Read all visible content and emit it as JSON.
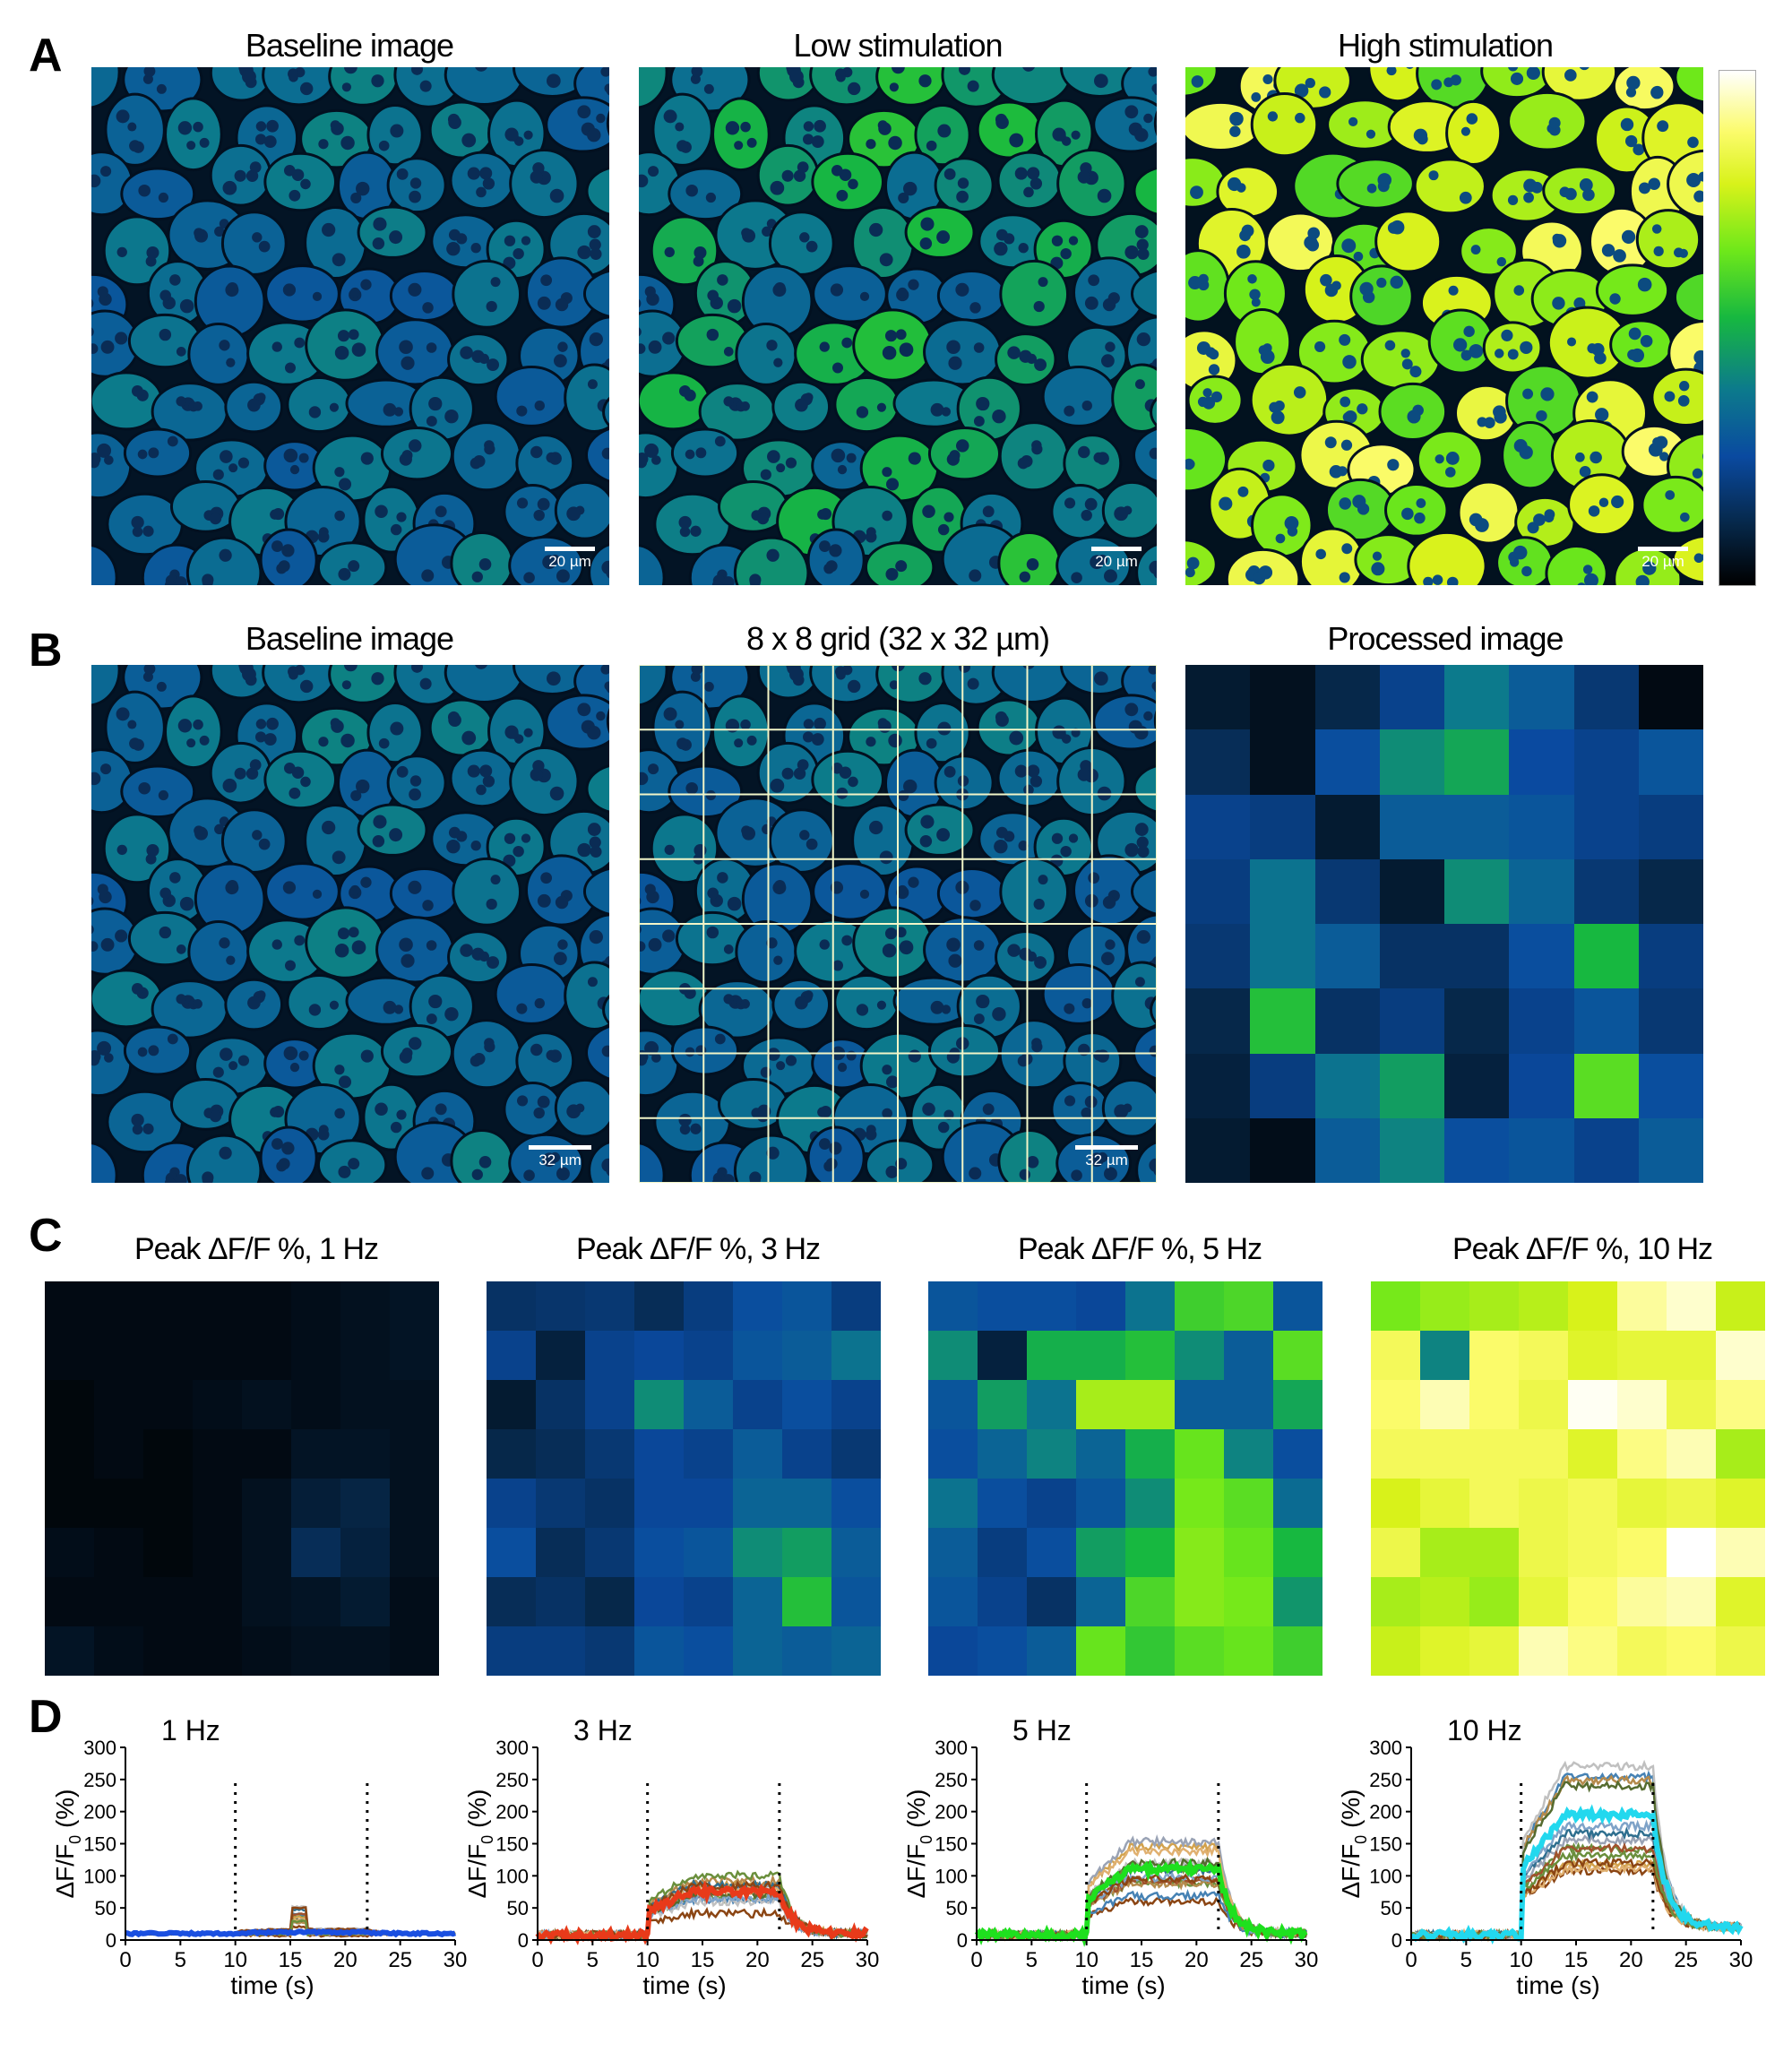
{
  "panels": {
    "A": {
      "letter": "A",
      "titles": [
        "Baseline image",
        "Low stimulation",
        "High stimulation"
      ],
      "scale_label": "20 µm"
    },
    "B": {
      "letter": "B",
      "titles": [
        "Baseline image",
        "8 x 8 grid (32 x 32 µm)",
        "Processed image"
      ],
      "scale_label": "32 µm",
      "processed_grid": [
        [
          0.08,
          0.05,
          0.12,
          0.22,
          0.38,
          0.3,
          0.18,
          0.03
        ],
        [
          0.14,
          0.05,
          0.26,
          0.42,
          0.48,
          0.25,
          0.22,
          0.28
        ],
        [
          0.22,
          0.2,
          0.08,
          0.3,
          0.3,
          0.28,
          0.22,
          0.2
        ],
        [
          0.2,
          0.36,
          0.18,
          0.08,
          0.42,
          0.32,
          0.18,
          0.12
        ],
        [
          0.18,
          0.36,
          0.3,
          0.16,
          0.16,
          0.26,
          0.52,
          0.2
        ],
        [
          0.12,
          0.54,
          0.16,
          0.2,
          0.12,
          0.22,
          0.28,
          0.18
        ],
        [
          0.1,
          0.2,
          0.36,
          0.46,
          0.1,
          0.24,
          0.62,
          0.26
        ],
        [
          0.08,
          0.04,
          0.3,
          0.4,
          0.26,
          0.28,
          0.22,
          0.3
        ]
      ]
    },
    "C": {
      "letter": "C",
      "titles": [
        "Peak ΔF/F %, 1 Hz",
        "Peak ΔF/F %, 3 Hz",
        "Peak ΔF/F %, 5 Hz",
        "Peak ΔF/F %, 10 Hz"
      ],
      "grids": [
        [
          [
            0.03,
            0.03,
            0.03,
            0.03,
            0.03,
            0.04,
            0.05,
            0.06
          ],
          [
            0.03,
            0.03,
            0.03,
            0.03,
            0.03,
            0.04,
            0.05,
            0.06
          ],
          [
            0.02,
            0.03,
            0.03,
            0.04,
            0.05,
            0.04,
            0.05,
            0.05
          ],
          [
            0.02,
            0.03,
            0.02,
            0.03,
            0.03,
            0.06,
            0.06,
            0.05
          ],
          [
            0.02,
            0.02,
            0.02,
            0.03,
            0.05,
            0.09,
            0.11,
            0.05
          ],
          [
            0.04,
            0.03,
            0.02,
            0.03,
            0.05,
            0.14,
            0.1,
            0.05
          ],
          [
            0.03,
            0.03,
            0.03,
            0.03,
            0.05,
            0.06,
            0.08,
            0.04
          ],
          [
            0.06,
            0.04,
            0.03,
            0.03,
            0.04,
            0.05,
            0.05,
            0.04
          ]
        ],
        [
          [
            0.16,
            0.17,
            0.18,
            0.14,
            0.2,
            0.26,
            0.28,
            0.2
          ],
          [
            0.22,
            0.1,
            0.22,
            0.24,
            0.22,
            0.28,
            0.3,
            0.36
          ],
          [
            0.08,
            0.16,
            0.22,
            0.42,
            0.3,
            0.22,
            0.26,
            0.22
          ],
          [
            0.12,
            0.14,
            0.18,
            0.24,
            0.22,
            0.3,
            0.22,
            0.18
          ],
          [
            0.22,
            0.18,
            0.16,
            0.24,
            0.24,
            0.32,
            0.32,
            0.26
          ],
          [
            0.26,
            0.14,
            0.18,
            0.26,
            0.28,
            0.42,
            0.46,
            0.3
          ],
          [
            0.14,
            0.16,
            0.12,
            0.24,
            0.22,
            0.32,
            0.54,
            0.28
          ],
          [
            0.2,
            0.2,
            0.18,
            0.28,
            0.26,
            0.32,
            0.3,
            0.32
          ]
        ],
        [
          [
            0.28,
            0.26,
            0.26,
            0.24,
            0.36,
            0.58,
            0.6,
            0.28
          ],
          [
            0.42,
            0.1,
            0.5,
            0.5,
            0.54,
            0.42,
            0.3,
            0.62
          ],
          [
            0.28,
            0.46,
            0.36,
            0.72,
            0.72,
            0.3,
            0.3,
            0.48
          ],
          [
            0.26,
            0.32,
            0.4,
            0.32,
            0.5,
            0.64,
            0.4,
            0.26
          ],
          [
            0.36,
            0.26,
            0.22,
            0.28,
            0.42,
            0.66,
            0.62,
            0.34
          ],
          [
            0.3,
            0.2,
            0.26,
            0.46,
            0.52,
            0.68,
            0.64,
            0.52
          ],
          [
            0.28,
            0.22,
            0.16,
            0.32,
            0.6,
            0.68,
            0.66,
            0.44
          ],
          [
            0.24,
            0.26,
            0.3,
            0.64,
            0.56,
            0.62,
            0.64,
            0.58
          ]
        ],
        [
          [
            0.66,
            0.7,
            0.72,
            0.74,
            0.78,
            0.92,
            0.96,
            0.76
          ],
          [
            0.86,
            0.4,
            0.88,
            0.86,
            0.8,
            0.82,
            0.82,
            0.96
          ],
          [
            0.88,
            0.94,
            0.88,
            0.84,
            0.99,
            0.96,
            0.84,
            0.9
          ],
          [
            0.86,
            0.86,
            0.86,
            0.86,
            0.8,
            0.9,
            0.94,
            0.72
          ],
          [
            0.78,
            0.82,
            0.86,
            0.84,
            0.86,
            0.82,
            0.84,
            0.8
          ],
          [
            0.84,
            0.72,
            0.72,
            0.84,
            0.86,
            0.88,
            1.0,
            0.94
          ],
          [
            0.72,
            0.74,
            0.7,
            0.82,
            0.88,
            0.92,
            0.94,
            0.8
          ],
          [
            0.76,
            0.8,
            0.82,
            0.94,
            0.9,
            0.86,
            0.88,
            0.84
          ]
        ]
      ]
    },
    "D": {
      "letter": "D",
      "titles": [
        "1 Hz",
        "3 Hz",
        "5 Hz",
        "10 Hz"
      ],
      "ylabel": "ΔF/F",
      "ylabel_sub": "0",
      "ylabel_unit": "(%)",
      "xlabel": "time (s)",
      "xticks": [
        "0",
        "5",
        "10",
        "15",
        "20",
        "25",
        "30"
      ],
      "yticks": [
        "0",
        "50",
        "100",
        "150",
        "200",
        "250",
        "300"
      ]
    }
  },
  "chart_data": [
    {
      "type": "line",
      "title": "1 Hz",
      "xlabel": "time (s)",
      "ylabel": "ΔF/F0 (%)",
      "xlim": [
        0,
        30
      ],
      "ylim": [
        0,
        300
      ],
      "stimulus_window": [
        10,
        22
      ],
      "baseline": 10,
      "plateau": 12,
      "decay_to": 10,
      "highlight_color": "#1a4fe0"
    },
    {
      "type": "line",
      "title": "3 Hz",
      "xlabel": "time (s)",
      "ylabel": "ΔF/F0 (%)",
      "xlim": [
        0,
        30
      ],
      "ylim": [
        0,
        300
      ],
      "stimulus_window": [
        10,
        22
      ],
      "baseline": 8,
      "plateau": 75,
      "decay_to": 10,
      "highlight_color": "#e83a1a"
    },
    {
      "type": "line",
      "title": "5 Hz",
      "xlabel": "time (s)",
      "ylabel": "ΔF/F0 (%)",
      "xlim": [
        0,
        30
      ],
      "ylim": [
        0,
        300
      ],
      "stimulus_window": [
        10,
        22
      ],
      "baseline": 8,
      "plateau": 110,
      "decay_to": 10,
      "highlight_color": "#1ee01e"
    },
    {
      "type": "line",
      "title": "10 Hz",
      "xlabel": "time (s)",
      "ylabel": "ΔF/F0 (%)",
      "xlim": [
        0,
        30
      ],
      "ylim": [
        0,
        300
      ],
      "stimulus_window": [
        10,
        22
      ],
      "baseline": 8,
      "plateau": 195,
      "decay_to": 20,
      "highlight_color": "#22d8ee"
    }
  ]
}
